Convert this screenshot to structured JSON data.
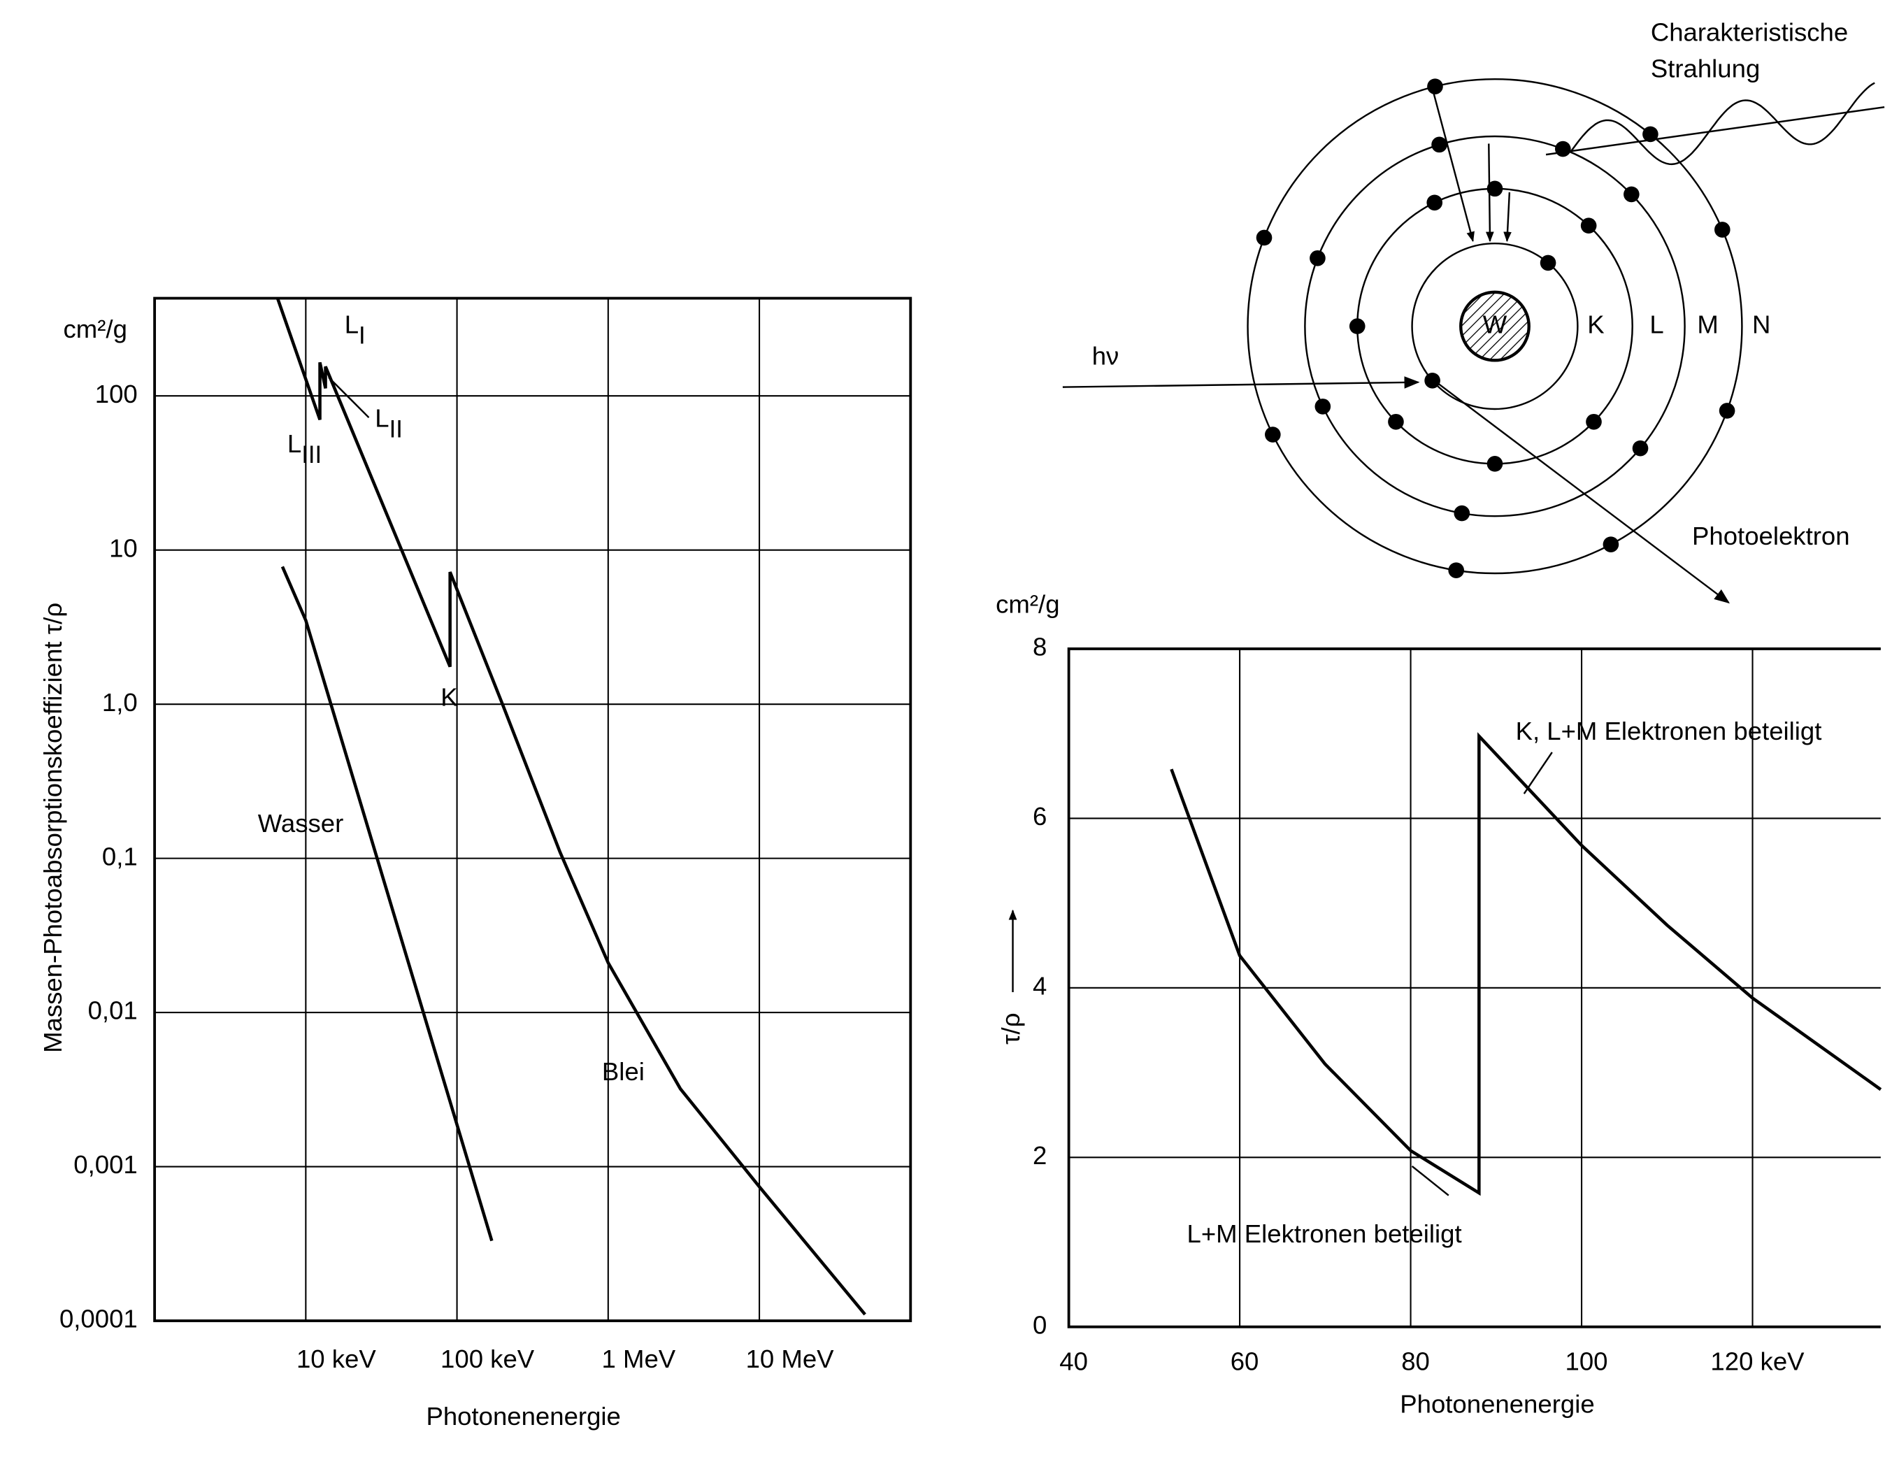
{
  "chart_data": [
    {
      "type": "line",
      "xscale": "log",
      "yscale": "log",
      "y_unit": "cm²/g",
      "ylabel": "Massen-Photoabsorptionskoeffizient τ/ρ",
      "xlabel": "Photonenenergie",
      "xlim": [
        1,
        100000
      ],
      "ylim": [
        0.0001,
        430
      ],
      "xticks": [
        {
          "value": 10,
          "label": "10 keV"
        },
        {
          "value": 100,
          "label": "100 keV"
        },
        {
          "value": 1000,
          "label": "1 MeV"
        },
        {
          "value": 10000,
          "label": "10 MeV"
        }
      ],
      "yticks": [
        {
          "value": 0.0001,
          "label": "0,0001"
        },
        {
          "value": 0.001,
          "label": "0,001"
        },
        {
          "value": 0.01,
          "label": "0,01"
        },
        {
          "value": 0.1,
          "label": "0,1"
        },
        {
          "value": 1,
          "label": "1,0"
        },
        10,
        100
      ],
      "grid": true,
      "series": [
        {
          "name": "Blei",
          "color": "#000000",
          "x": [
            6.5,
            12.4,
            12.4,
            13.5,
            13.5,
            90,
            90,
            200,
            480,
            1000,
            3000,
            10000,
            50000
          ],
          "values": [
            430,
            70,
            165,
            112,
            155,
            1.75,
            7.2,
            1.0,
            0.11,
            0.021,
            0.0032,
            0.00074,
            0.00011
          ]
        },
        {
          "name": "Wasser",
          "color": "#000000",
          "x": [
            7,
            10,
            170
          ],
          "values": [
            7.8,
            3.5,
            0.00033
          ]
        }
      ],
      "annotations": [
        {
          "text": "L",
          "sub": "I"
        },
        {
          "text": "L",
          "sub": "II"
        },
        {
          "text": "L",
          "sub": "III"
        },
        {
          "text": "K"
        }
      ]
    },
    {
      "type": "line",
      "y_unit": "cm²/g",
      "ylabel": "τ/ρ",
      "xlabel": "Photonenenergie",
      "xlim": [
        40,
        135
      ],
      "ylim": [
        0,
        8
      ],
      "xticks": [
        40,
        60,
        80,
        100,
        {
          "value": 120,
          "label": "120  keV"
        }
      ],
      "yticks": [
        0,
        2,
        4,
        6,
        8
      ],
      "grid": true,
      "series": [
        {
          "color": "#000000",
          "x": [
            52,
            60,
            70,
            80,
            88,
            88,
            100,
            110,
            120,
            135
          ],
          "values": [
            6.58,
            4.38,
            3.1,
            2.08,
            1.58,
            6.97,
            5.68,
            4.74,
            3.88,
            2.8
          ]
        }
      ],
      "annotations": [
        "K, L+M Elektronen beteiligt",
        "L+M Elektronen beteiligt"
      ]
    }
  ],
  "diagram": {
    "nucleus": "W",
    "shells": [
      "K",
      "L",
      "M",
      "N"
    ],
    "incoming": "hν",
    "emitted": [
      "Charakteristische",
      "Strahlung"
    ],
    "electron": "Photoelektron"
  }
}
